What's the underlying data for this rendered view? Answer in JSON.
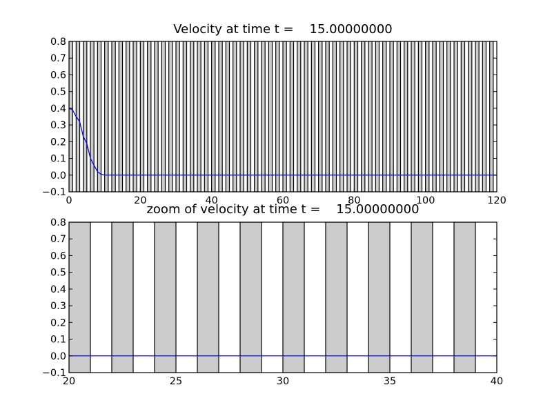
{
  "chart_data": [
    {
      "type": "line",
      "title": "Velocity at time t =    15.00000000",
      "xlabel": "",
      "ylabel": "",
      "xlim": [
        0,
        120
      ],
      "ylim": [
        -0.1,
        0.8
      ],
      "xticks": [
        "0",
        "20",
        "40",
        "60",
        "80",
        "100",
        "120"
      ],
      "yticks": [
        "−0.1",
        "0.0",
        "0.1",
        "0.2",
        "0.3",
        "0.4",
        "0.5",
        "0.6",
        "0.7",
        "0.8"
      ],
      "band_fill_color": "#cccccc",
      "band_edge_color": "#000000",
      "line_color": "#0000ff",
      "grid": false,
      "bands": {
        "start": 0,
        "end": 120,
        "period": 2,
        "width": 1
      },
      "series": [
        {
          "x": [
            0,
            1,
            2,
            3,
            4,
            5,
            6,
            7,
            8,
            9,
            10,
            11,
            12,
            15,
            20,
            30,
            40,
            60,
            80,
            100,
            120
          ],
          "y": [
            0.4,
            0.39,
            0.35,
            0.32,
            0.23,
            0.19,
            0.1,
            0.06,
            0.02,
            0.005,
            0.0,
            0.0,
            0.0,
            0.0,
            0.0,
            0.0,
            0.0,
            0.0,
            0.0,
            0.0,
            0.0
          ]
        }
      ]
    },
    {
      "type": "line",
      "title": "zoom of velocity at time t =    15.00000000",
      "xlabel": "",
      "ylabel": "",
      "xlim": [
        20,
        40
      ],
      "ylim": [
        -0.1,
        0.8
      ],
      "xticks": [
        "20",
        "25",
        "30",
        "35",
        "40"
      ],
      "yticks": [
        "−0.1",
        "0.0",
        "0.1",
        "0.2",
        "0.3",
        "0.4",
        "0.5",
        "0.6",
        "0.7",
        "0.8"
      ],
      "band_fill_color": "#cccccc",
      "band_edge_color": "#000000",
      "line_color": "#0000ff",
      "grid": false,
      "bands": {
        "start": 20,
        "end": 40,
        "period": 2,
        "width": 1
      },
      "series": [
        {
          "x": [
            20,
            25,
            30,
            35,
            40
          ],
          "y": [
            0.0,
            0.0,
            0.0,
            0.0,
            0.0
          ]
        }
      ]
    }
  ]
}
